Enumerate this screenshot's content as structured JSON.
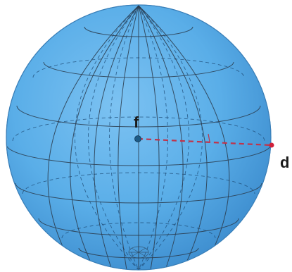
{
  "diagram": {
    "center_label": "f",
    "surface_label": "d",
    "colors": {
      "sphere_fill": "#5aaee8",
      "sphere_shade": "#3f8fd0",
      "radius_line": "#c0334a",
      "center_point": "#1d5b86",
      "surface_point": "#d0203a"
    }
  }
}
